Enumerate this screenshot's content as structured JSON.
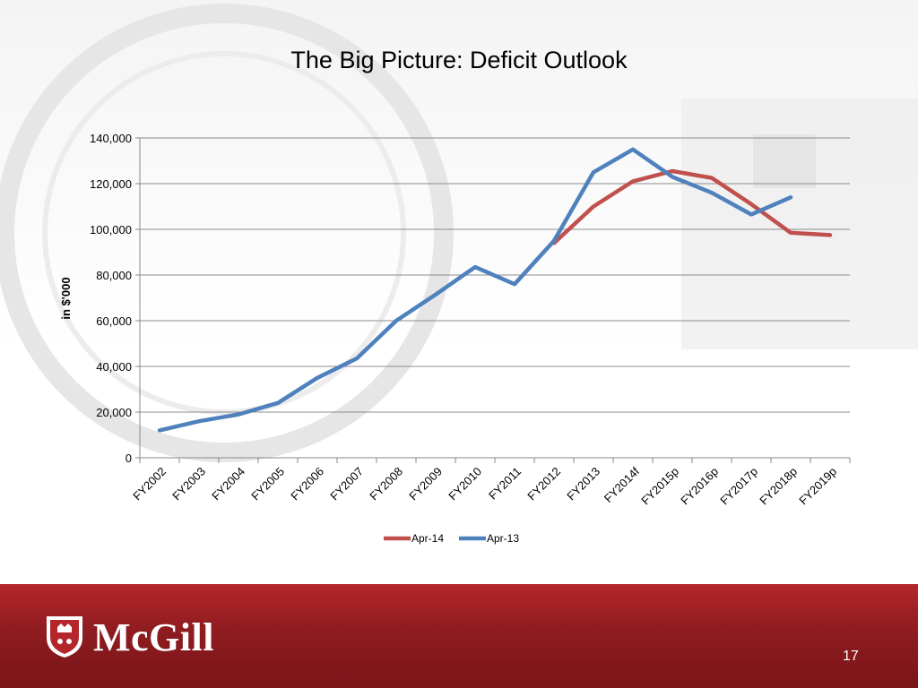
{
  "slide": {
    "title": "The Big Picture:  Deficit Outlook",
    "logo": "McGill",
    "page_number": "17"
  },
  "colors": {
    "apr14": "#c0504d",
    "apr13": "#4f81bd",
    "footer": "#9b1e23"
  },
  "chart_data": {
    "type": "line",
    "title": "",
    "xlabel": "",
    "ylabel": "in $'000",
    "ylim": [
      0,
      140000
    ],
    "yticks": [
      0,
      20000,
      40000,
      60000,
      80000,
      100000,
      120000,
      140000
    ],
    "ytick_labels": [
      "0",
      "20,000",
      "40,000",
      "60,000",
      "80,000",
      "100,000",
      "120,000",
      "140,000"
    ],
    "grid": true,
    "legend": "bottom",
    "categories": [
      "FY2002",
      "FY2003",
      "FY2004",
      "FY2005",
      "FY2006",
      "FY2007",
      "FY2008",
      "FY2009",
      "FY2010",
      "FY2011",
      "FY2012",
      "FY2013",
      "FY2014f",
      "FY2015p",
      "FY2016p",
      "FY2017p",
      "FY2018p",
      "FY2019p"
    ],
    "series": [
      {
        "name": "Apr-14",
        "color": "#c0504d",
        "values": [
          null,
          null,
          null,
          null,
          null,
          null,
          null,
          null,
          null,
          null,
          94000,
          110000,
          121000,
          125500,
          122500,
          111000,
          98500,
          97500
        ]
      },
      {
        "name": "Apr-13",
        "color": "#4f81bd",
        "values": [
          12000,
          16000,
          19000,
          24000,
          35000,
          43500,
          60000,
          71500,
          83500,
          76000,
          95000,
          125000,
          135000,
          123000,
          116000,
          106500,
          114000,
          null
        ]
      }
    ]
  }
}
